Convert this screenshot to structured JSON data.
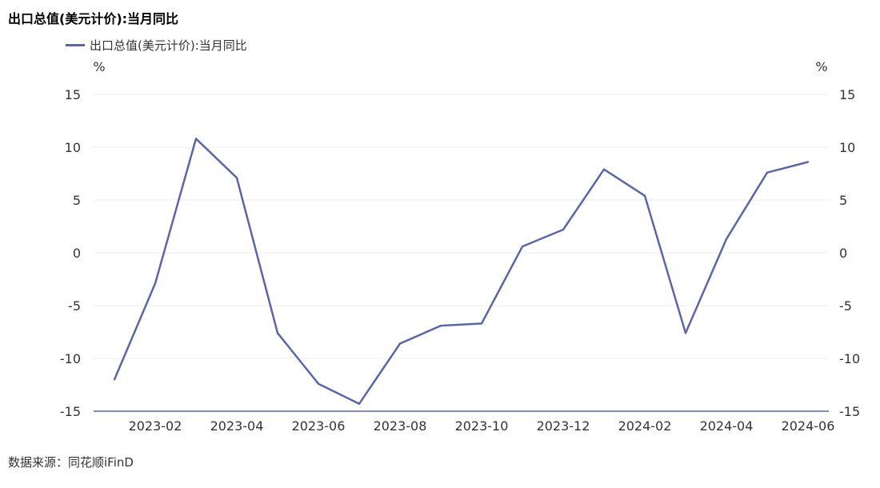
{
  "chart_data": {
    "type": "line",
    "title": "出口总值(美元计价):当月同比",
    "y_unit": "%",
    "ylim": [
      -15,
      15
    ],
    "y_ticks": [
      15,
      10,
      5,
      0,
      -5,
      -10,
      -15
    ],
    "x_tick_labels": [
      "2023-02",
      "2023-04",
      "2023-06",
      "2023-08",
      "2023-10",
      "2023-12",
      "2024-02",
      "2024-04",
      "2024-06"
    ],
    "x": [
      "2023-01",
      "2023-02",
      "2023-03",
      "2023-04",
      "2023-05",
      "2023-06",
      "2023-07",
      "2023-08",
      "2023-09",
      "2023-10",
      "2023-11",
      "2023-12",
      "2024-01",
      "2024-02",
      "2024-03",
      "2024-04",
      "2024-05",
      "2024-06"
    ],
    "series": [
      {
        "name": "出口总值(美元计价):当月同比",
        "color": "#5b67a5",
        "values": [
          -12.0,
          -2.9,
          10.8,
          7.1,
          -7.6,
          -12.4,
          -14.3,
          -8.6,
          -6.9,
          -6.7,
          0.6,
          2.2,
          7.9,
          5.4,
          -7.6,
          1.3,
          7.6,
          8.6
        ]
      }
    ],
    "grid": true,
    "legend_position": "top-left",
    "source": "数据来源：同花顺iFinD"
  }
}
